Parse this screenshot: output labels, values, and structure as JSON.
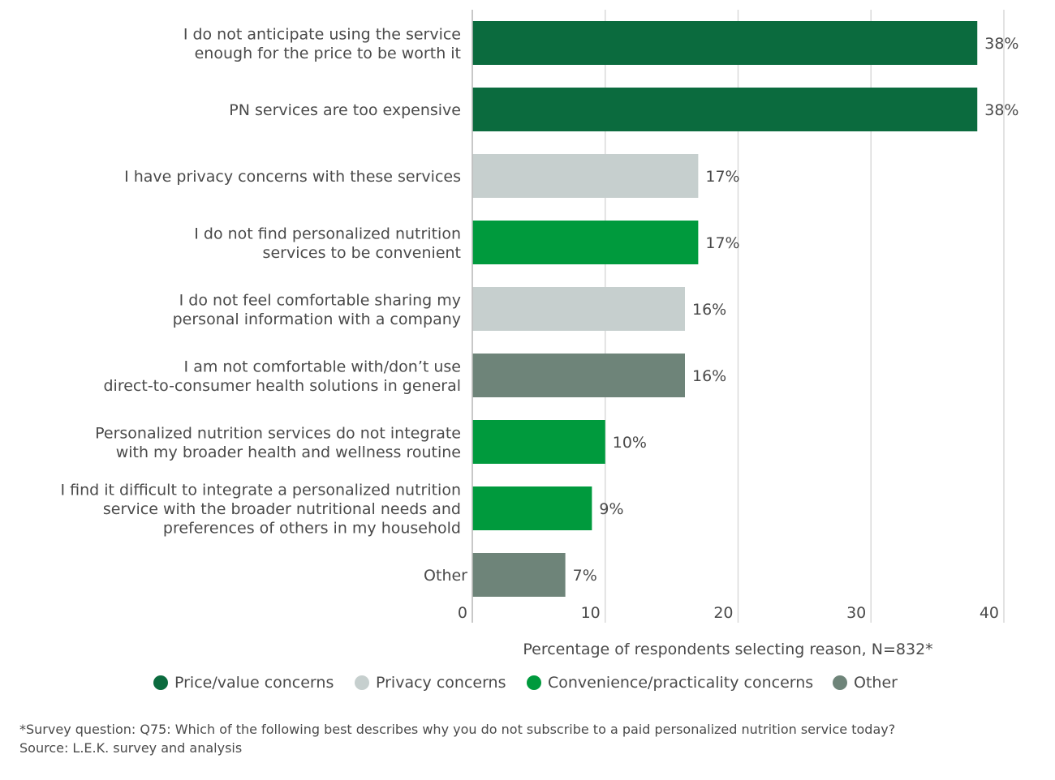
{
  "chart_data": {
    "type": "bar",
    "orientation": "horizontal",
    "categories": [
      [
        "I do not anticipate using the service",
        "enough for the price to be worth it"
      ],
      [
        "PN services are too expensive"
      ],
      [
        "I have privacy concerns with these services"
      ],
      [
        "I do not find personalized nutrition",
        "services to be convenient"
      ],
      [
        "I do not feel comfortable sharing my",
        "personal information with a company"
      ],
      [
        "I am not comfortable with/don’t use",
        "direct-to-consumer health solutions in general"
      ],
      [
        "Personalized nutrition services do not integrate",
        "with my broader health and wellness routine"
      ],
      [
        "I find it difficult to integrate a personalized nutrition",
        "service with the broader nutritional needs and",
        "preferences of others in my household"
      ],
      [
        "Other"
      ]
    ],
    "values": [
      38,
      38,
      17,
      17,
      16,
      16,
      10,
      9,
      7
    ],
    "data_labels": [
      "38%",
      "38%",
      "17%",
      "17%",
      "16%",
      "16%",
      "10%",
      "9%",
      "7%"
    ],
    "groups": [
      "price",
      "price",
      "privacy",
      "convenience",
      "privacy",
      "other",
      "convenience",
      "convenience",
      "other"
    ],
    "xlabel": "Percentage of respondents selecting reason, N=832*",
    "xlim": [
      0,
      40
    ],
    "xticks": [
      "0",
      "10",
      "20",
      "30",
      "40"
    ],
    "grid": true,
    "legend_position": "bottom",
    "legend": [
      {
        "key": "price",
        "label": "Price/value concerns",
        "color": "#0b6b3e"
      },
      {
        "key": "privacy",
        "label": "Privacy concerns",
        "color": "#c6cfce"
      },
      {
        "key": "convenience",
        "label": "Convenience/practicality concerns",
        "color": "#009a3d"
      },
      {
        "key": "other",
        "label": "Other",
        "color": "#6e8479"
      }
    ]
  },
  "footnote": {
    "question": "*Survey question: Q75: Which of the following best describes why you do not subscribe to a paid personalized nutrition service today?",
    "source": "Source: L.E.K. survey and analysis"
  }
}
